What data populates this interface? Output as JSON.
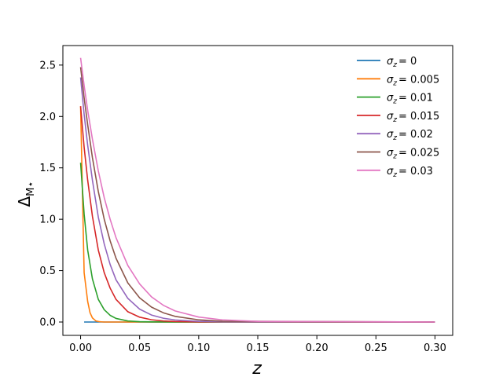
{
  "chart_data": {
    "type": "line",
    "xlabel": "z",
    "ylabel": "Δ",
    "ylabel_subscript": "M⋆",
    "xlim": [
      -0.015,
      0.315
    ],
    "ylim": [
      -0.13,
      2.69
    ],
    "x_ticks": [
      0.0,
      0.05,
      0.1,
      0.15,
      0.2,
      0.25,
      0.3
    ],
    "x_tick_labels": [
      "0.00",
      "0.05",
      "0.10",
      "0.15",
      "0.20",
      "0.25",
      "0.30"
    ],
    "y_ticks": [
      0.0,
      0.5,
      1.0,
      1.5,
      2.0,
      2.5
    ],
    "y_tick_labels": [
      "0.0",
      "0.5",
      "1.0",
      "1.5",
      "2.0",
      "2.5"
    ],
    "grid": false,
    "legend_position": "top-right",
    "series": [
      {
        "label_prefix": "σ",
        "label_sub": "z",
        "label_value": "= 0",
        "color": "#1f77b4",
        "x": [
          0.003,
          0.3
        ],
        "y": [
          0.0,
          0.0
        ]
      },
      {
        "label_prefix": "σ",
        "label_sub": "z",
        "label_value": "= 0.005",
        "color": "#ff7f0e",
        "x": [
          0.0,
          0.003,
          0.006,
          0.008,
          0.01,
          0.013,
          0.016,
          0.02,
          0.03,
          0.3
        ],
        "y": [
          2.1,
          0.48,
          0.2,
          0.09,
          0.04,
          0.01,
          0.003,
          0.0,
          0.0,
          0.0
        ]
      },
      {
        "label_prefix": "σ",
        "label_sub": "z",
        "label_value": "= 0.01",
        "color": "#2ca02c",
        "x": [
          0.0,
          0.003,
          0.006,
          0.01,
          0.015,
          0.02,
          0.025,
          0.03,
          0.04,
          0.05,
          0.06,
          0.08,
          0.3
        ],
        "y": [
          1.55,
          1.05,
          0.7,
          0.42,
          0.22,
          0.12,
          0.065,
          0.035,
          0.01,
          0.003,
          0.001,
          0.0,
          0.0
        ]
      },
      {
        "label_prefix": "σ",
        "label_sub": "z",
        "label_value": "= 0.015",
        "color": "#d62728",
        "x": [
          0.0,
          0.003,
          0.006,
          0.01,
          0.015,
          0.02,
          0.025,
          0.03,
          0.04,
          0.05,
          0.06,
          0.07,
          0.08,
          0.1,
          0.3
        ],
        "y": [
          2.1,
          1.7,
          1.38,
          1.03,
          0.7,
          0.48,
          0.33,
          0.22,
          0.1,
          0.047,
          0.022,
          0.01,
          0.005,
          0.001,
          0.0
        ]
      },
      {
        "label_prefix": "σ",
        "label_sub": "z",
        "label_value": "= 0.02",
        "color": "#9467bd",
        "x": [
          0.0,
          0.003,
          0.006,
          0.01,
          0.015,
          0.02,
          0.025,
          0.03,
          0.04,
          0.05,
          0.06,
          0.07,
          0.08,
          0.1,
          0.12,
          0.3
        ],
        "y": [
          2.38,
          2.02,
          1.72,
          1.38,
          1.02,
          0.76,
          0.56,
          0.41,
          0.23,
          0.125,
          0.068,
          0.037,
          0.02,
          0.006,
          0.002,
          0.0
        ]
      },
      {
        "label_prefix": "σ",
        "label_sub": "z",
        "label_value": "= 0.025",
        "color": "#8c564b",
        "x": [
          0.0,
          0.003,
          0.006,
          0.01,
          0.015,
          0.02,
          0.025,
          0.03,
          0.04,
          0.05,
          0.06,
          0.07,
          0.08,
          0.1,
          0.12,
          0.3
        ],
        "y": [
          2.48,
          2.18,
          1.92,
          1.6,
          1.27,
          1.0,
          0.79,
          0.62,
          0.38,
          0.235,
          0.145,
          0.09,
          0.055,
          0.021,
          0.008,
          0.0
        ]
      },
      {
        "label_prefix": "σ",
        "label_sub": "z",
        "label_value": "= 0.03",
        "color": "#e377c2",
        "x": [
          0.0,
          0.003,
          0.006,
          0.01,
          0.015,
          0.02,
          0.025,
          0.03,
          0.04,
          0.05,
          0.06,
          0.07,
          0.08,
          0.1,
          0.12,
          0.15,
          0.3
        ],
        "y": [
          2.57,
          2.3,
          2.06,
          1.78,
          1.47,
          1.21,
          1.0,
          0.82,
          0.55,
          0.37,
          0.245,
          0.163,
          0.108,
          0.048,
          0.021,
          0.006,
          0.0
        ]
      }
    ]
  }
}
